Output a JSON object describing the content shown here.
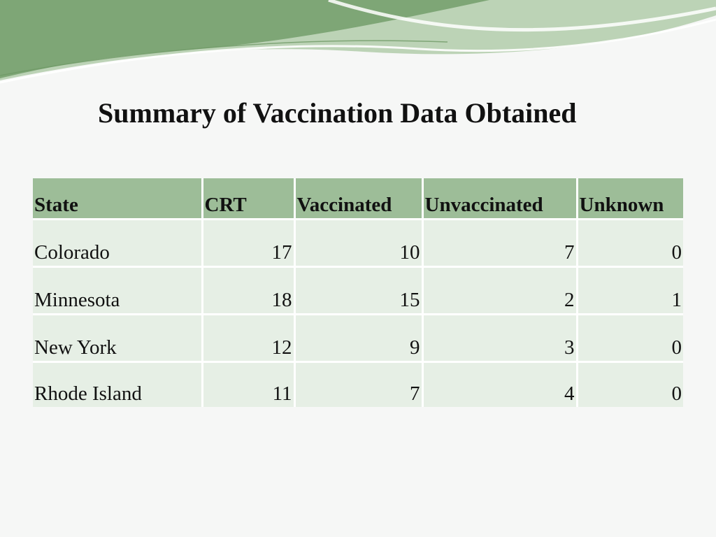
{
  "title": "Summary of Vaccination Data Obtained",
  "colors": {
    "header_bg": "#9dbd98",
    "row_bg": "#e6efe5",
    "banner_dark": "#7ea676",
    "banner_light": "#bcd3b6",
    "background": "#f6f7f6"
  },
  "table": {
    "headers": [
      "State",
      "CRT",
      "Vaccinated",
      "Unvaccinated",
      "Unknown"
    ],
    "rows": [
      [
        "Colorado",
        "17",
        "10",
        "7",
        "0"
      ],
      [
        "Minnesota",
        "18",
        "15",
        "2",
        "1"
      ],
      [
        "New York",
        "12",
        "9",
        "3",
        "0"
      ],
      [
        "Rhode Island",
        "11",
        "7",
        "4",
        "0"
      ]
    ]
  }
}
